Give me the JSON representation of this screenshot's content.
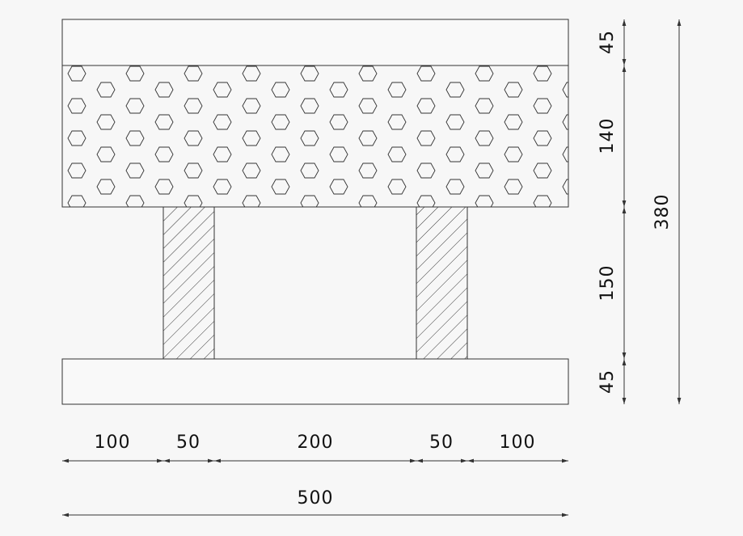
{
  "dimensions": {
    "horizontal": [
      100,
      50,
      200,
      50,
      100
    ],
    "total_width": 500,
    "vertical": [
      45,
      140,
      150,
      45
    ],
    "total_height": 380
  }
}
